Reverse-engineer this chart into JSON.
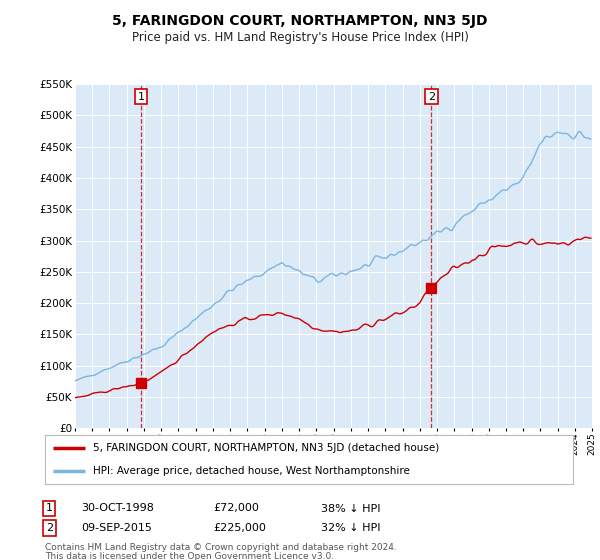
{
  "title": "5, FARINGDON COURT, NORTHAMPTON, NN3 5JD",
  "subtitle": "Price paid vs. HM Land Registry's House Price Index (HPI)",
  "background_color": "#dce9f7",
  "plot_bg_color": "#dce9f7",
  "hpi_color": "#7ab6e0",
  "price_color": "#cc0000",
  "marker1_x": 1998.83,
  "marker1_price": 72000,
  "marker1_label": "30-OCT-1998",
  "marker1_price_str": "£72,000",
  "marker1_hpi_pct": "38% ↓ HPI",
  "marker2_x": 2015.67,
  "marker2_price": 225000,
  "marker2_label": "09-SEP-2015",
  "marker2_price_str": "£225,000",
  "marker2_hpi_pct": "32% ↓ HPI",
  "legend_label1": "5, FARINGDON COURT, NORTHAMPTON, NN3 5JD (detached house)",
  "legend_label2": "HPI: Average price, detached house, West Northamptonshire",
  "footer1": "Contains HM Land Registry data © Crown copyright and database right 2024.",
  "footer2": "This data is licensed under the Open Government Licence v3.0.",
  "ylim": [
    0,
    550000
  ],
  "xlim": [
    1995,
    2025
  ],
  "yticks": [
    0,
    50000,
    100000,
    150000,
    200000,
    250000,
    300000,
    350000,
    400000,
    450000,
    500000,
    550000
  ]
}
